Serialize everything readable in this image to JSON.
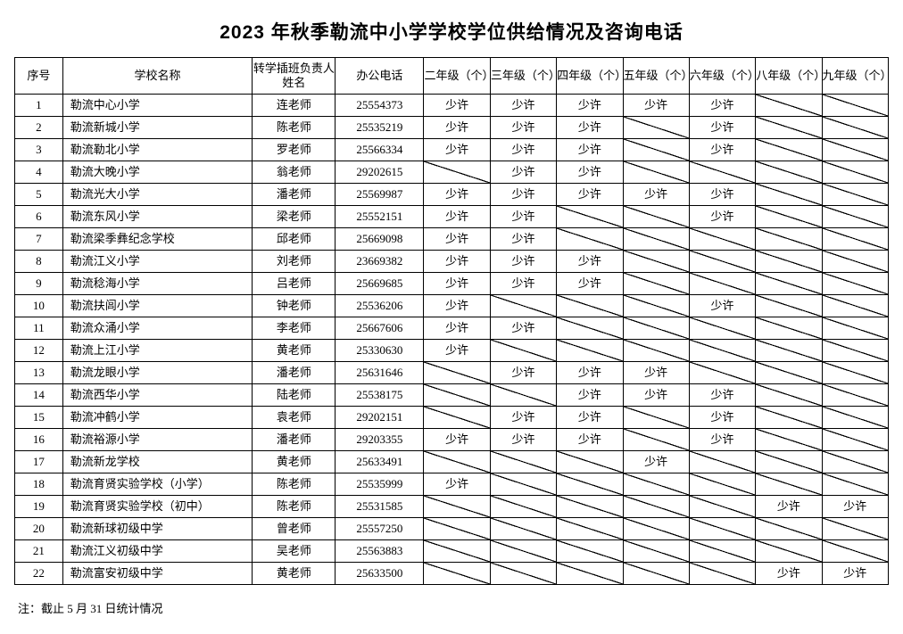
{
  "title": "2023 年秋季勒流中小学学校学位供给情况及咨询电话",
  "columns": {
    "seq": "序号",
    "school": "学校名称",
    "person": "转学插班负责人姓名",
    "phone": "办公电话",
    "g2": "二年级（个）",
    "g3": "三年级（个）",
    "g4": "四年级（个）",
    "g5": "五年级（个）",
    "g6": "六年级（个）",
    "g8": "八年级（个）",
    "g9": "九年级（个）"
  },
  "value_token": "少许",
  "rows": [
    {
      "seq": "1",
      "school": "勒流中心小学",
      "person": "连老师",
      "phone": "25554373",
      "g2": "少许",
      "g3": "少许",
      "g4": "少许",
      "g5": "少许",
      "g6": "少许",
      "g8": "/",
      "g9": "/"
    },
    {
      "seq": "2",
      "school": "勒流新城小学",
      "person": "陈老师",
      "phone": "25535219",
      "g2": "少许",
      "g3": "少许",
      "g4": "少许",
      "g5": "/",
      "g6": "少许",
      "g8": "/",
      "g9": "/"
    },
    {
      "seq": "3",
      "school": "勒流勒北小学",
      "person": "罗老师",
      "phone": "25566334",
      "g2": "少许",
      "g3": "少许",
      "g4": "少许",
      "g5": "/",
      "g6": "少许",
      "g8": "/",
      "g9": "/"
    },
    {
      "seq": "4",
      "school": "勒流大晚小学",
      "person": "翁老师",
      "phone": "29202615",
      "g2": "/",
      "g3": "少许",
      "g4": "少许",
      "g5": "/",
      "g6": "/",
      "g8": "/",
      "g9": "/"
    },
    {
      "seq": "5",
      "school": "勒流光大小学",
      "person": "潘老师",
      "phone": "25569987",
      "g2": "少许",
      "g3": "少许",
      "g4": "少许",
      "g5": "少许",
      "g6": "少许",
      "g8": "/",
      "g9": "/"
    },
    {
      "seq": "6",
      "school": "勒流东风小学",
      "person": "梁老师",
      "phone": "25552151",
      "g2": "少许",
      "g3": "少许",
      "g4": "/",
      "g5": "/",
      "g6": "少许",
      "g8": "/",
      "g9": "/"
    },
    {
      "seq": "7",
      "school": "勒流梁季彝纪念学校",
      "person": "邱老师",
      "phone": "25669098",
      "g2": "少许",
      "g3": "少许",
      "g4": "/",
      "g5": "/",
      "g6": "/",
      "g8": "/",
      "g9": "/"
    },
    {
      "seq": "8",
      "school": "勒流江义小学",
      "person": "刘老师",
      "phone": "23669382",
      "g2": "少许",
      "g3": "少许",
      "g4": "少许",
      "g5": "/",
      "g6": "/",
      "g8": "/",
      "g9": "/"
    },
    {
      "seq": "9",
      "school": "勒流稔海小学",
      "person": "吕老师",
      "phone": "25669685",
      "g2": "少许",
      "g3": "少许",
      "g4": "少许",
      "g5": "/",
      "g6": "/",
      "g8": "/",
      "g9": "/"
    },
    {
      "seq": "10",
      "school": "勒流扶闾小学",
      "person": "钟老师",
      "phone": "25536206",
      "g2": "少许",
      "g3": "/",
      "g4": "/",
      "g5": "/",
      "g6": "少许",
      "g8": "/",
      "g9": "/"
    },
    {
      "seq": "11",
      "school": "勒流众涌小学",
      "person": "李老师",
      "phone": "25667606",
      "g2": "少许",
      "g3": "少许",
      "g4": "/",
      "g5": "/",
      "g6": "/",
      "g8": "/",
      "g9": "/"
    },
    {
      "seq": "12",
      "school": "勒流上江小学",
      "person": "黄老师",
      "phone": "25330630",
      "g2": "少许",
      "g3": "/",
      "g4": "/",
      "g5": "/",
      "g6": "/",
      "g8": "/",
      "g9": "/"
    },
    {
      "seq": "13",
      "school": "勒流龙眼小学",
      "person": "潘老师",
      "phone": "25631646",
      "g2": "/",
      "g3": "少许",
      "g4": "少许",
      "g5": "少许",
      "g6": "/",
      "g8": "/",
      "g9": "/"
    },
    {
      "seq": "14",
      "school": "勒流西华小学",
      "person": "陆老师",
      "phone": "25538175",
      "g2": "/",
      "g3": "/",
      "g4": "少许",
      "g5": "少许",
      "g6": "少许",
      "g8": "/",
      "g9": "/"
    },
    {
      "seq": "15",
      "school": "勒流冲鹤小学",
      "person": "袁老师",
      "phone": "29202151",
      "g2": "/",
      "g3": "少许",
      "g4": "少许",
      "g5": "/",
      "g6": "少许",
      "g8": "/",
      "g9": "/"
    },
    {
      "seq": "16",
      "school": "勒流裕源小学",
      "person": "潘老师",
      "phone": "29203355",
      "g2": "少许",
      "g3": "少许",
      "g4": "少许",
      "g5": "/",
      "g6": "少许",
      "g8": "/",
      "g9": "/"
    },
    {
      "seq": "17",
      "school": "勒流新龙学校",
      "person": "黄老师",
      "phone": "25633491",
      "g2": "/",
      "g3": "/",
      "g4": "/",
      "g5": "少许",
      "g6": "/",
      "g8": "/",
      "g9": "/"
    },
    {
      "seq": "18",
      "school": "勒流育贤实验学校（小学）",
      "person": "陈老师",
      "phone": "25535999",
      "g2": "少许",
      "g3": "/",
      "g4": "/",
      "g5": "/",
      "g6": "/",
      "g8": "/",
      "g9": "/"
    },
    {
      "seq": "19",
      "school": "勒流育贤实验学校（初中）",
      "person": "陈老师",
      "phone": "25531585",
      "g2": "/",
      "g3": "/",
      "g4": "/",
      "g5": "/",
      "g6": "/",
      "g8": "少许",
      "g9": "少许"
    },
    {
      "seq": "20",
      "school": "勒流新球初级中学",
      "person": "曾老师",
      "phone": "25557250",
      "g2": "/",
      "g3": "/",
      "g4": "/",
      "g5": "/",
      "g6": "/",
      "g8": "/",
      "g9": "/"
    },
    {
      "seq": "21",
      "school": "勒流江义初级中学",
      "person": "吴老师",
      "phone": "25563883",
      "g2": "/",
      "g3": "/",
      "g4": "/",
      "g5": "/",
      "g6": "/",
      "g8": "/",
      "g9": "/"
    },
    {
      "seq": "22",
      "school": "勒流富安初级中学",
      "person": "黄老师",
      "phone": "25633500",
      "g2": "/",
      "g3": "/",
      "g4": "/",
      "g5": "/",
      "g6": "/",
      "g8": "少许",
      "g9": "少许"
    }
  ],
  "footnote": "注：截止 5 月 31 日统计情况"
}
